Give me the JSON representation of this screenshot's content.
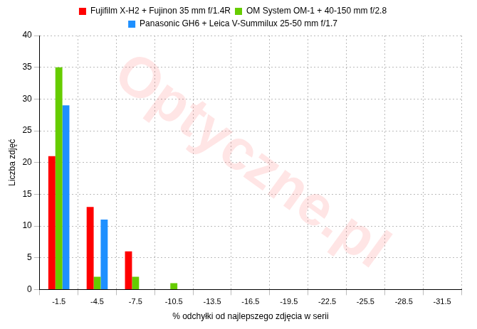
{
  "chart_data": {
    "type": "bar",
    "x_label": "% odchyłki od najlepszego zdjęcia w serii",
    "y_label": "Liczba zdjęć",
    "annotations": [
      "Optyczne.pl"
    ],
    "categories": [
      "-1.5",
      "-4.5",
      "-7.5",
      "-10.5",
      "-13.5",
      "-16.5",
      "-19.5",
      "-22.5",
      "-25.5",
      "-28.5",
      "-31.5"
    ],
    "series": [
      {
        "name": "Fujifilm X-H2 + Fujinon 35 mm f/1.4R",
        "color": "#ff0000",
        "values": [
          21,
          13,
          6,
          0,
          0,
          0,
          0,
          0,
          0,
          0,
          0
        ]
      },
      {
        "name": "OM System OM-1 + 40-150 mm f/2.8",
        "color": "#66cc00",
        "values": [
          35,
          2,
          2,
          1,
          0,
          0,
          0,
          0,
          0,
          0,
          0
        ]
      },
      {
        "name": "Panasonic GH6 + Leica V-Summilux 25-50 mm f/1.7",
        "color": "#1e90ff",
        "values": [
          29,
          11,
          0,
          0,
          0,
          0,
          0,
          0,
          0,
          0,
          0
        ]
      }
    ],
    "ylim": [
      0,
      40
    ],
    "yticks": [
      0,
      5,
      10,
      15,
      20,
      25,
      30,
      35,
      40
    ],
    "grid": true,
    "legend": "top"
  }
}
